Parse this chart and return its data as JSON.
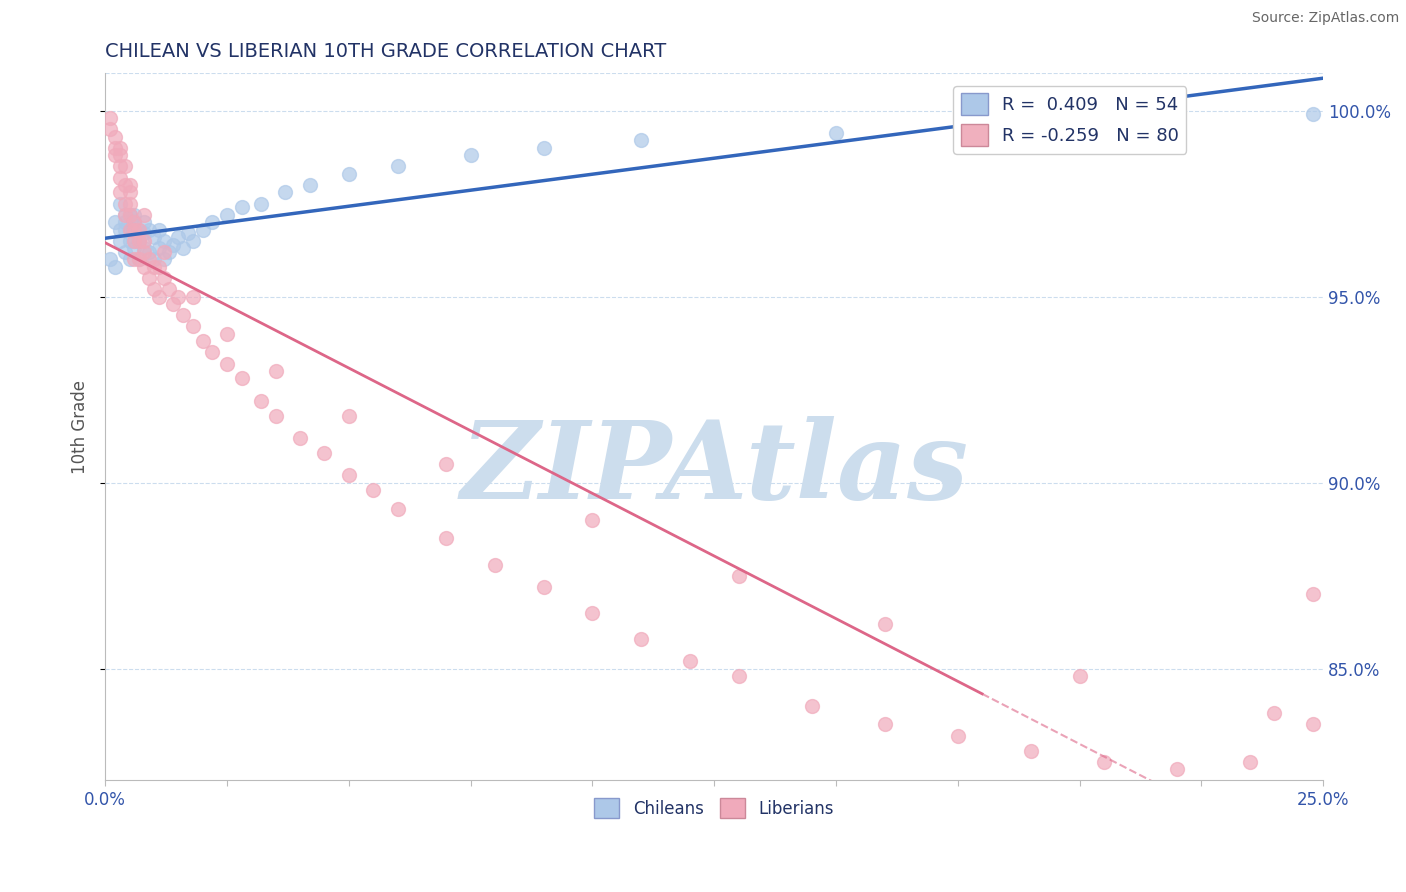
{
  "title": "CHILEAN VS LIBERIAN 10TH GRADE CORRELATION CHART",
  "source": "Source: ZipAtlas.com",
  "ylabel": "10th Grade",
  "right_ytick_vals": [
    1.0,
    0.95,
    0.9,
    0.85
  ],
  "legend1_label": "R =  0.409   N = 54",
  "legend2_label": "R = -0.259   N = 80",
  "legend_color1": "#adc8e8",
  "legend_color2": "#f0b0be",
  "dot_color_chilean": "#adc8e8",
  "dot_color_liberian": "#f0aabb",
  "line_color_chilean": "#3366bb",
  "line_color_liberian": "#dd6688",
  "watermark": "ZIPAtlas",
  "watermark_color": "#ccdded",
  "xmin": 0.0,
  "xmax": 0.25,
  "ymin": 0.82,
  "ymax": 1.01,
  "chilean_x": [
    0.001,
    0.002,
    0.002,
    0.003,
    0.003,
    0.003,
    0.004,
    0.004,
    0.004,
    0.004,
    0.005,
    0.005,
    0.005,
    0.005,
    0.006,
    0.006,
    0.006,
    0.006,
    0.006,
    0.007,
    0.007,
    0.007,
    0.008,
    0.008,
    0.008,
    0.009,
    0.009,
    0.01,
    0.01,
    0.011,
    0.011,
    0.012,
    0.012,
    0.013,
    0.014,
    0.015,
    0.016,
    0.017,
    0.018,
    0.02,
    0.022,
    0.025,
    0.028,
    0.032,
    0.037,
    0.042,
    0.05,
    0.06,
    0.075,
    0.09,
    0.11,
    0.15,
    0.22,
    0.248
  ],
  "chilean_y": [
    0.96,
    0.958,
    0.97,
    0.965,
    0.968,
    0.975,
    0.97,
    0.968,
    0.972,
    0.962,
    0.96,
    0.965,
    0.968,
    0.972,
    0.963,
    0.965,
    0.968,
    0.97,
    0.972,
    0.96,
    0.965,
    0.968,
    0.963,
    0.967,
    0.97,
    0.962,
    0.968,
    0.96,
    0.966,
    0.963,
    0.968,
    0.96,
    0.965,
    0.962,
    0.964,
    0.966,
    0.963,
    0.967,
    0.965,
    0.968,
    0.97,
    0.972,
    0.974,
    0.975,
    0.978,
    0.98,
    0.983,
    0.985,
    0.988,
    0.99,
    0.992,
    0.994,
    0.997,
    0.999
  ],
  "liberian_x": [
    0.001,
    0.001,
    0.002,
    0.002,
    0.002,
    0.003,
    0.003,
    0.003,
    0.003,
    0.004,
    0.004,
    0.004,
    0.004,
    0.005,
    0.005,
    0.005,
    0.005,
    0.006,
    0.006,
    0.006,
    0.006,
    0.007,
    0.007,
    0.007,
    0.008,
    0.008,
    0.008,
    0.009,
    0.009,
    0.01,
    0.01,
    0.011,
    0.011,
    0.012,
    0.013,
    0.014,
    0.015,
    0.016,
    0.018,
    0.02,
    0.022,
    0.025,
    0.028,
    0.032,
    0.035,
    0.04,
    0.045,
    0.05,
    0.055,
    0.06,
    0.07,
    0.08,
    0.09,
    0.1,
    0.11,
    0.12,
    0.13,
    0.145,
    0.16,
    0.175,
    0.19,
    0.205,
    0.22,
    0.235,
    0.248,
    0.003,
    0.005,
    0.008,
    0.012,
    0.018,
    0.025,
    0.035,
    0.05,
    0.07,
    0.1,
    0.13,
    0.16,
    0.2,
    0.24,
    0.248
  ],
  "liberian_y": [
    0.998,
    0.995,
    0.993,
    0.988,
    0.99,
    0.985,
    0.988,
    0.982,
    0.978,
    0.985,
    0.98,
    0.975,
    0.972,
    0.978,
    0.972,
    0.968,
    0.975,
    0.97,
    0.965,
    0.968,
    0.96,
    0.965,
    0.96,
    0.968,
    0.962,
    0.958,
    0.965,
    0.96,
    0.955,
    0.958,
    0.952,
    0.958,
    0.95,
    0.955,
    0.952,
    0.948,
    0.95,
    0.945,
    0.942,
    0.938,
    0.935,
    0.932,
    0.928,
    0.922,
    0.918,
    0.912,
    0.908,
    0.902,
    0.898,
    0.893,
    0.885,
    0.878,
    0.872,
    0.865,
    0.858,
    0.852,
    0.848,
    0.84,
    0.835,
    0.832,
    0.828,
    0.825,
    0.823,
    0.825,
    0.87,
    0.99,
    0.98,
    0.972,
    0.962,
    0.95,
    0.94,
    0.93,
    0.918,
    0.905,
    0.89,
    0.875,
    0.862,
    0.848,
    0.838,
    0.835
  ]
}
